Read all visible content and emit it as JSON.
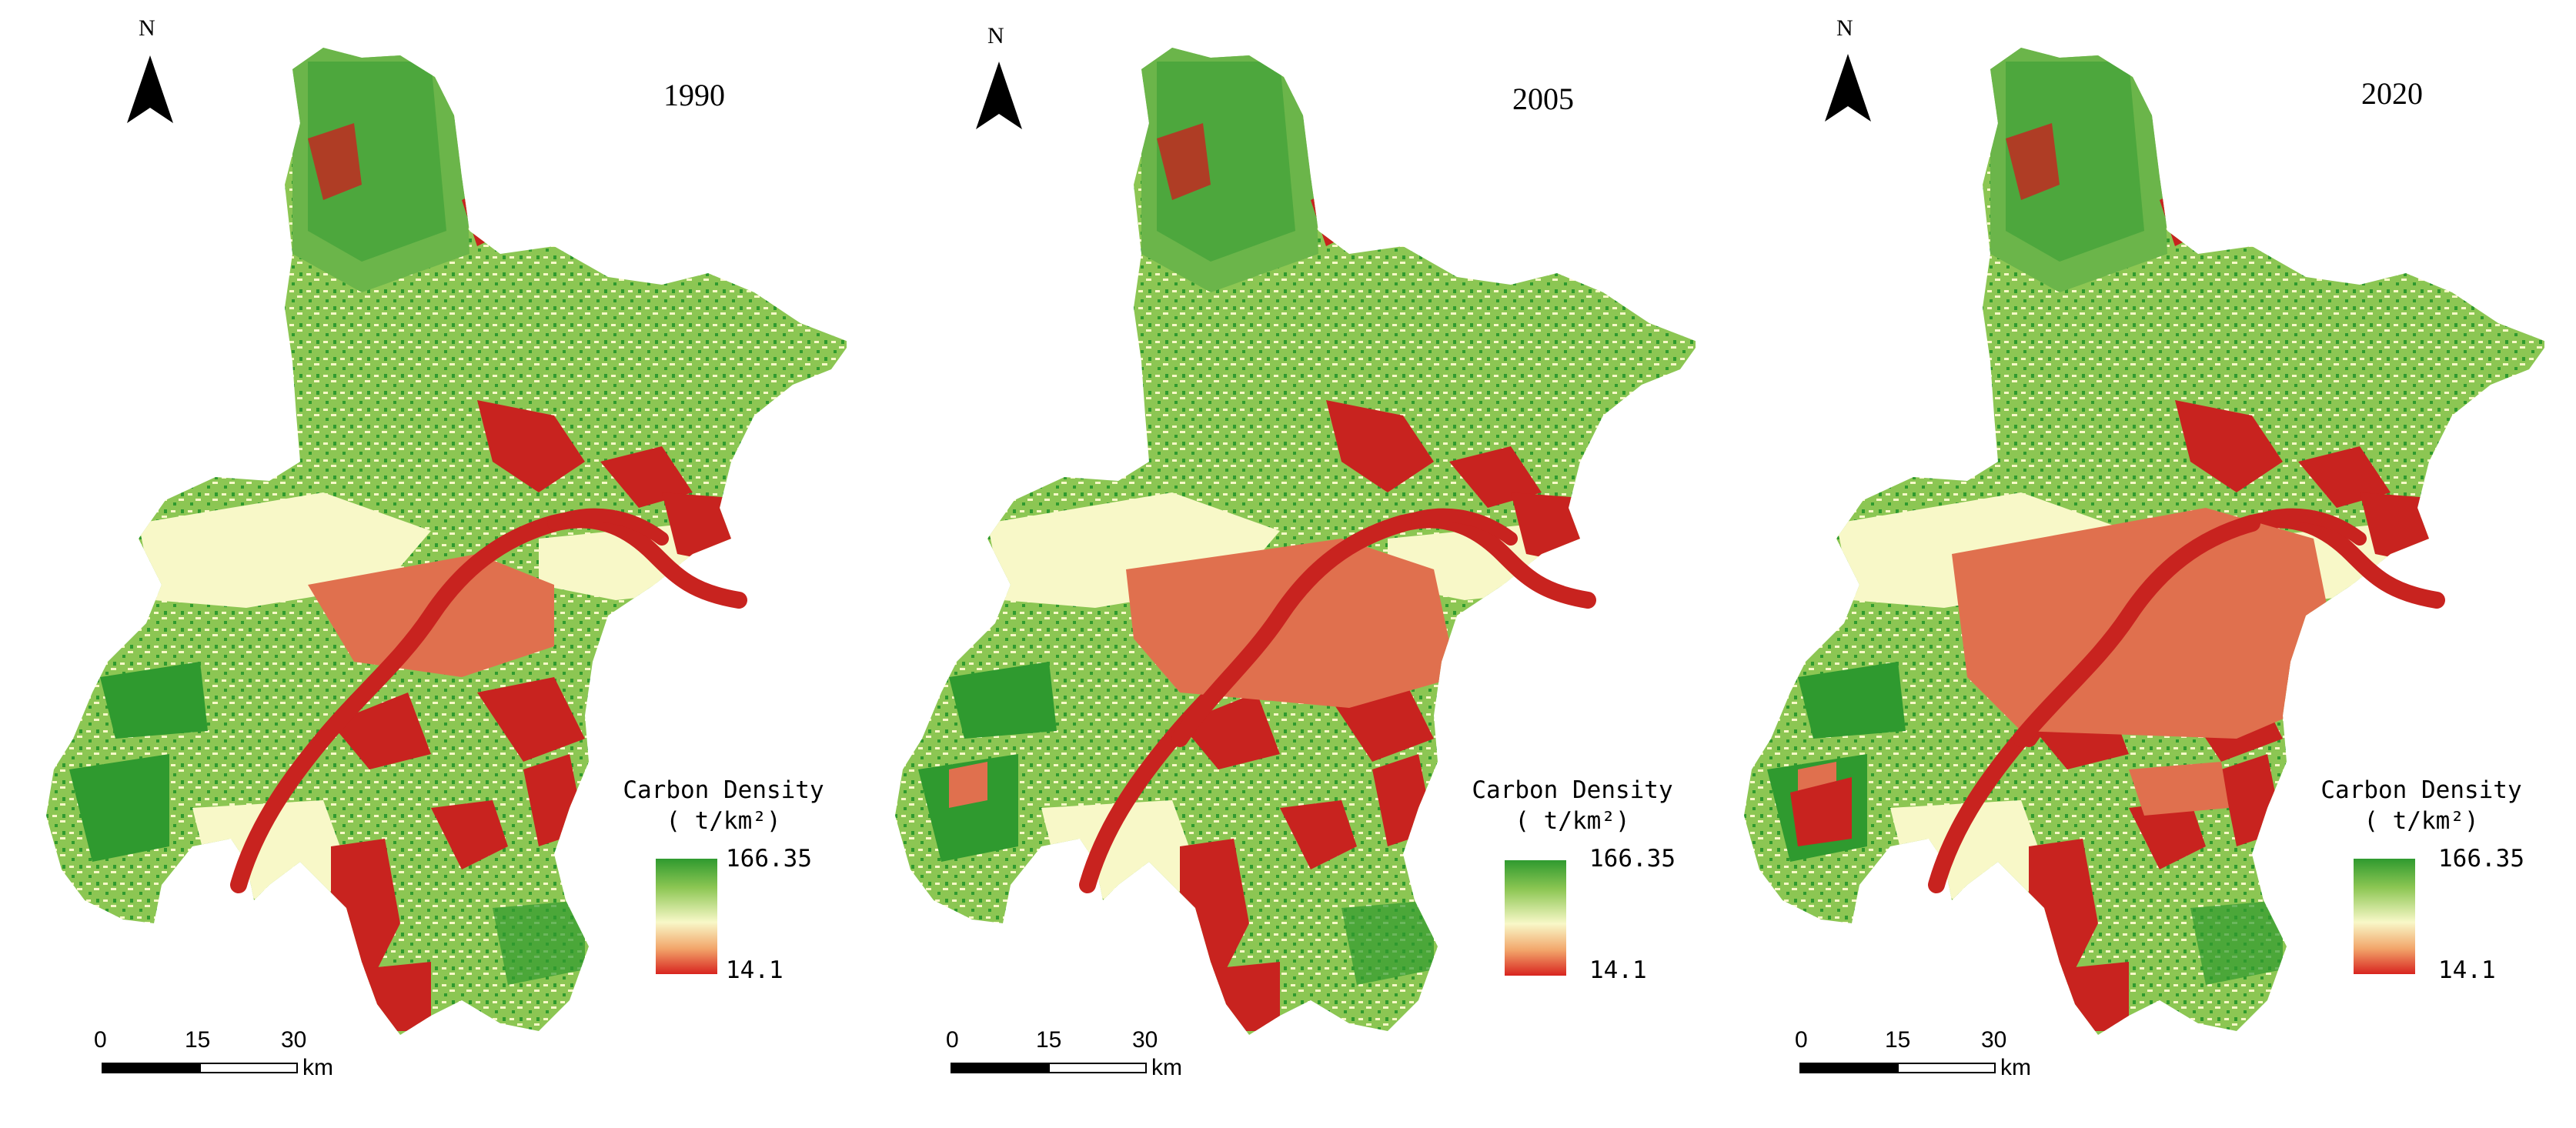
{
  "panels": [
    {
      "year": "1990",
      "north": "N",
      "legend": {
        "title": "Carbon Density",
        "unit": "( t/km²)",
        "max": "166.35",
        "min": "14.1"
      },
      "scale": {
        "ticks": [
          "0",
          "15",
          "30"
        ],
        "unit": "km"
      }
    },
    {
      "year": "2005",
      "north": "N",
      "legend": {
        "title": "Carbon Density",
        "unit": "( t/km²)",
        "max": "166.35",
        "min": "14.1"
      },
      "scale": {
        "ticks": [
          "0",
          "15",
          "30"
        ],
        "unit": "km"
      }
    },
    {
      "year": "2020",
      "north": "N",
      "legend": {
        "title": "Carbon Density",
        "unit": "( t/km²)",
        "max": "166.35",
        "min": "14.1"
      },
      "scale": {
        "ticks": [
          "0",
          "15",
          "30"
        ],
        "unit": "km"
      }
    }
  ],
  "colors": {
    "high": "#2f9a2f",
    "mid_high": "#8cc653",
    "mid": "#f8f8c8",
    "mid_low": "#f2a56a",
    "low": "#d8241f",
    "urban": "#e0704e",
    "river": "#c8231f"
  }
}
